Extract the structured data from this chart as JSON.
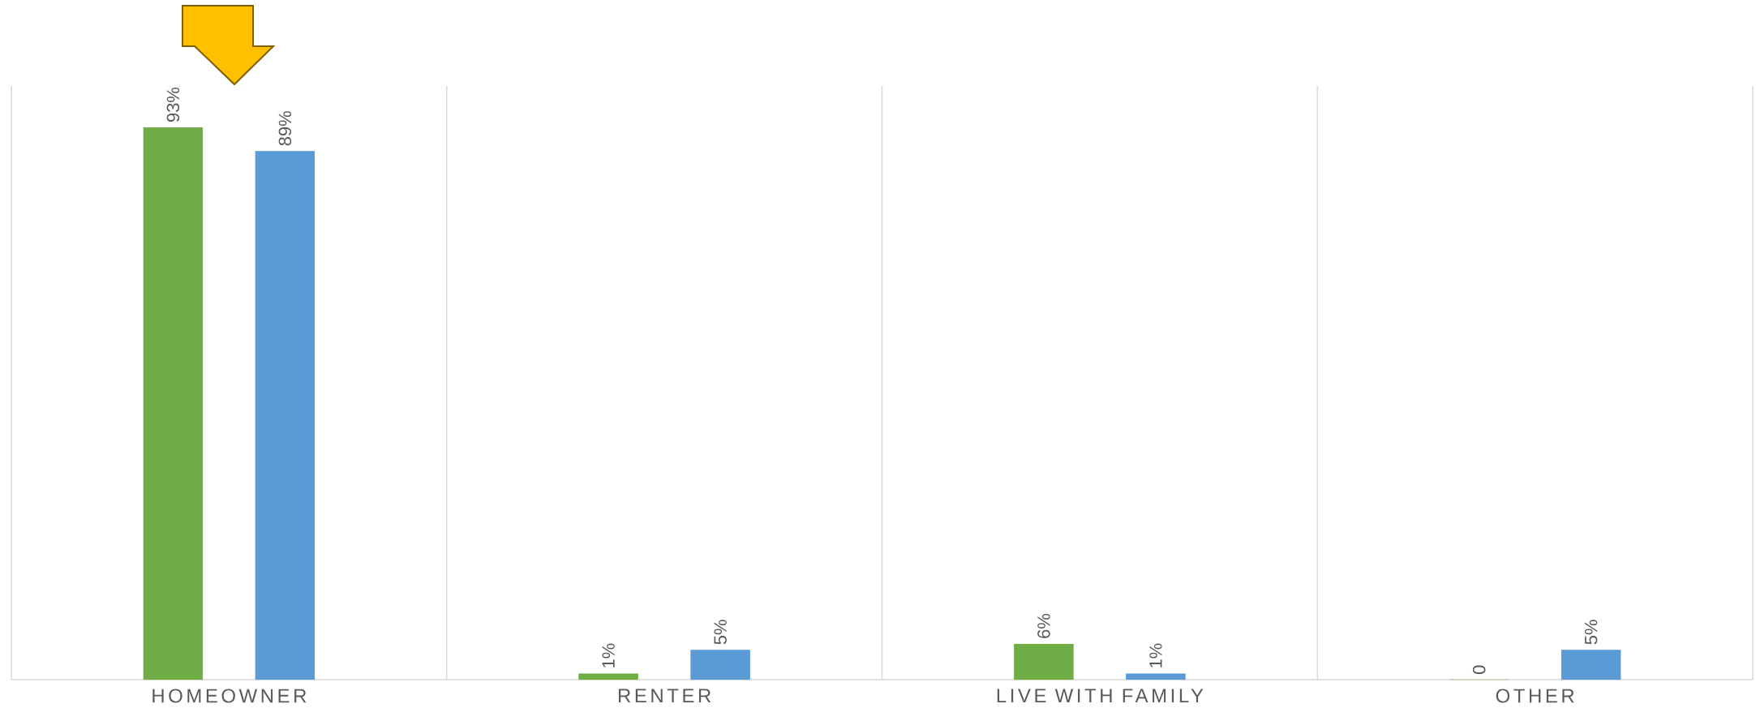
{
  "chart_data": {
    "type": "bar",
    "categories": [
      "HOMEOWNER",
      "RENTER",
      "LIVE WITH FAMILY",
      "OTHER"
    ],
    "series": [
      {
        "color": "#70ad47",
        "values": [
          93,
          1,
          6,
          0
        ],
        "value_labels": [
          "93%",
          "1%",
          "6%",
          "0"
        ]
      },
      {
        "color": "#5b9bd5",
        "values": [
          89,
          5,
          1,
          5
        ],
        "value_labels": [
          "89%",
          "5%",
          "1%",
          "5%"
        ]
      }
    ],
    "ylim": [
      0,
      100
    ],
    "grid": "x"
  }
}
